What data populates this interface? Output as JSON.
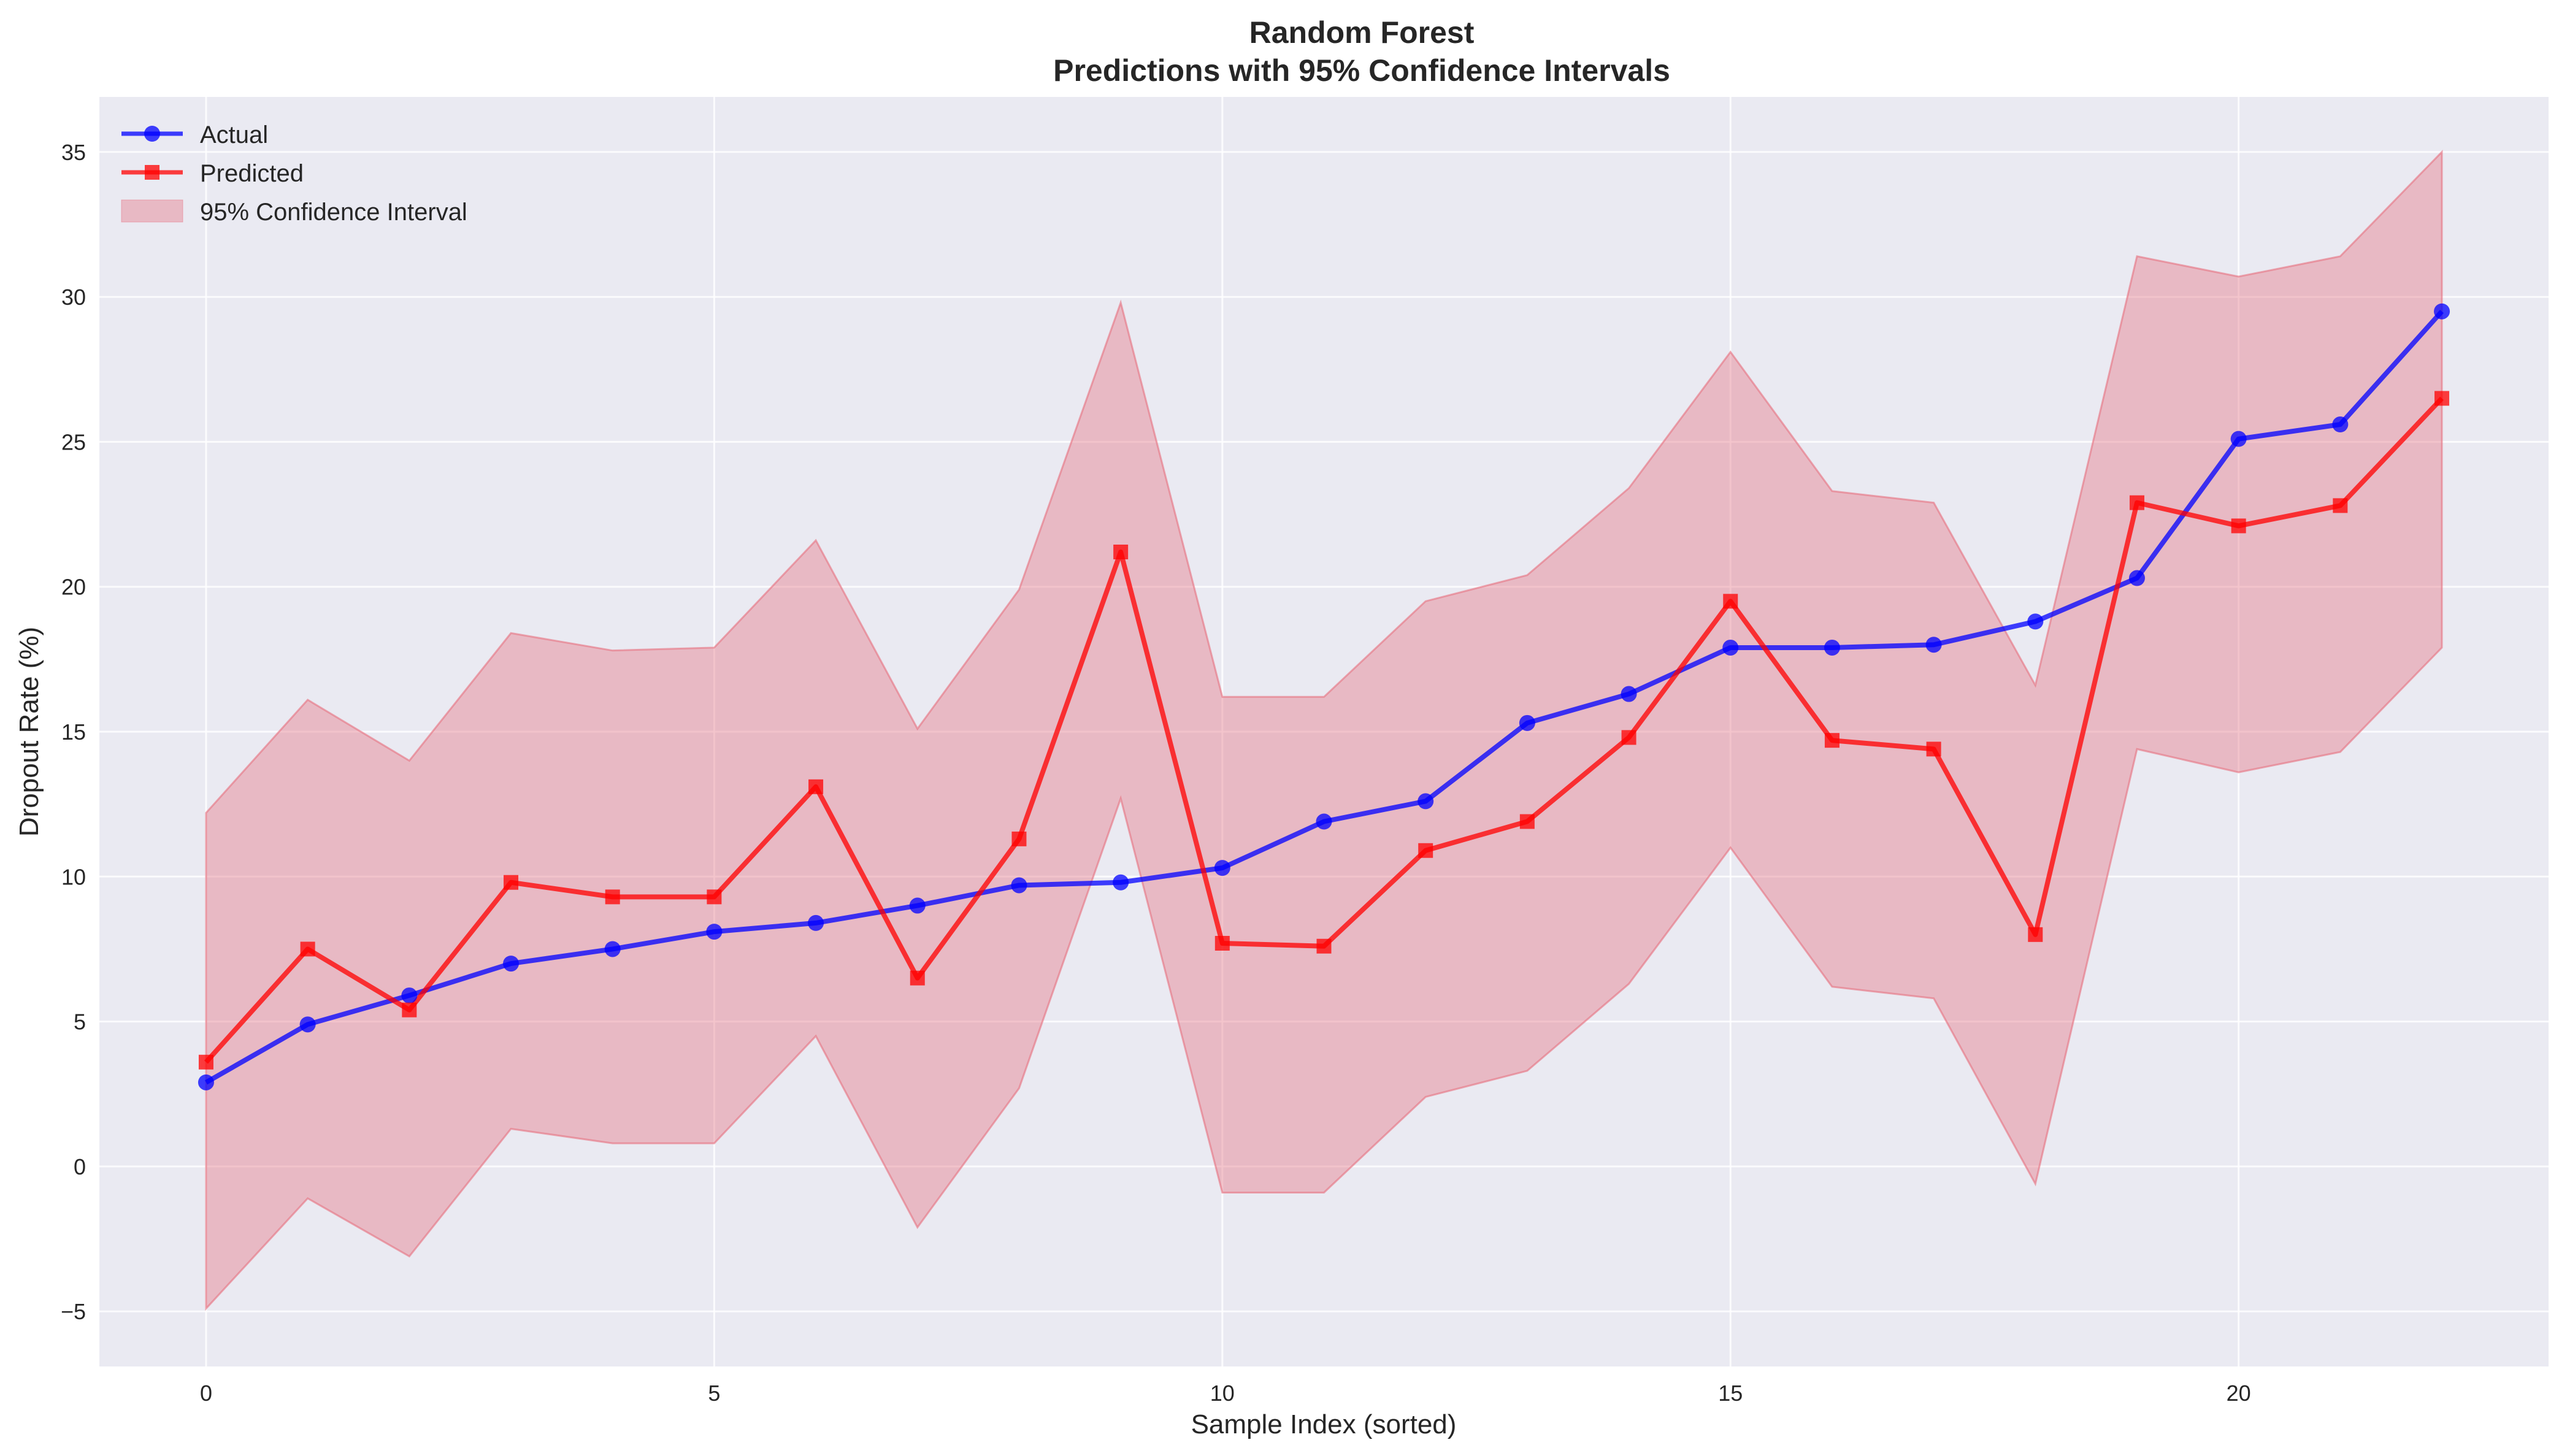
{
  "chart_data": {
    "type": "line",
    "title": "Random Forest",
    "subtitle": "Predictions with 95% Confidence Intervals",
    "xlabel": "Sample Index (sorted)",
    "ylabel": "Dropout Rate (%)",
    "xlim": [
      -1.05,
      23.05
    ],
    "ylim": [
      -6.9,
      36.9
    ],
    "x_ticks": [
      0,
      5,
      10,
      15,
      20
    ],
    "y_ticks": [
      -5,
      0,
      5,
      10,
      15,
      20,
      25,
      30,
      35
    ],
    "x_tick_labels": [
      "0",
      "5",
      "10",
      "15",
      "20"
    ],
    "y_tick_labels": [
      "−5",
      "0",
      "5",
      "10",
      "15",
      "20",
      "25",
      "30",
      "35"
    ],
    "grid": true,
    "legend_position": "top-left",
    "x": [
      0,
      1,
      2,
      3,
      4,
      5,
      6,
      7,
      8,
      9,
      10,
      11,
      12,
      13,
      14,
      15,
      16,
      17,
      18,
      19,
      20,
      21,
      22
    ],
    "series": [
      {
        "name": "Actual",
        "color": "#0000ff",
        "marker": "circle",
        "values": [
          2.9,
          4.9,
          5.9,
          7.0,
          7.5,
          8.1,
          8.4,
          9.0,
          9.7,
          9.8,
          10.3,
          11.9,
          12.6,
          15.3,
          16.3,
          17.9,
          17.9,
          18.0,
          18.8,
          20.3,
          25.1,
          25.6,
          29.5
        ]
      },
      {
        "name": "Predicted",
        "color": "#ff0000",
        "marker": "square",
        "values": [
          3.6,
          7.5,
          5.4,
          9.8,
          9.3,
          9.3,
          13.1,
          6.5,
          11.3,
          21.2,
          7.7,
          7.6,
          10.9,
          11.9,
          14.8,
          19.5,
          14.7,
          14.4,
          8.0,
          22.9,
          22.1,
          22.8,
          26.5
        ]
      }
    ],
    "confidence_interval": {
      "name": "95% Confidence Interval",
      "color": "#e6707f",
      "upper": [
        12.2,
        16.1,
        14.0,
        18.4,
        17.8,
        17.9,
        21.6,
        15.1,
        19.9,
        29.8,
        16.2,
        16.2,
        19.5,
        20.4,
        23.4,
        28.1,
        23.3,
        22.9,
        16.6,
        31.4,
        30.7,
        31.4,
        35.0
      ],
      "lower": [
        -4.9,
        -1.1,
        -3.1,
        1.3,
        0.8,
        0.8,
        4.5,
        -2.1,
        2.7,
        12.7,
        -0.9,
        -0.9,
        2.4,
        3.3,
        6.3,
        11.0,
        6.2,
        5.8,
        -0.6,
        14.4,
        13.6,
        14.3,
        17.9
      ]
    }
  }
}
